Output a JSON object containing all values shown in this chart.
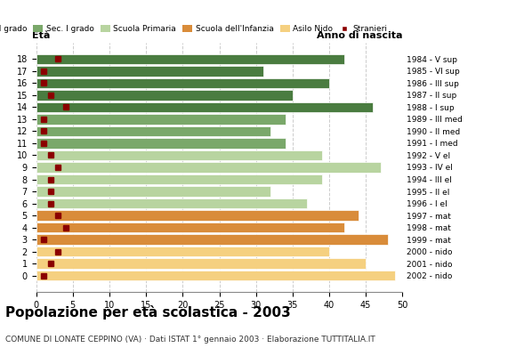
{
  "ages": [
    18,
    17,
    16,
    15,
    14,
    13,
    12,
    11,
    10,
    9,
    8,
    7,
    6,
    5,
    4,
    3,
    2,
    1,
    0
  ],
  "years": [
    "1984 - V sup",
    "1985 - VI sup",
    "1986 - III sup",
    "1987 - II sup",
    "1988 - I sup",
    "1989 - III med",
    "1990 - II med",
    "1991 - I med",
    "1992 - V el",
    "1993 - IV el",
    "1994 - III el",
    "1995 - II el",
    "1996 - I el",
    "1997 - mat",
    "1998 - mat",
    "1999 - mat",
    "2000 - nido",
    "2001 - nido",
    "2002 - nido"
  ],
  "bar_values": [
    42,
    31,
    40,
    35,
    46,
    34,
    32,
    34,
    39,
    47,
    39,
    32,
    37,
    44,
    42,
    48,
    40,
    45,
    49
  ],
  "stranieri": [
    3,
    1,
    1,
    2,
    4,
    1,
    1,
    1,
    2,
    3,
    2,
    2,
    2,
    3,
    4,
    1,
    3,
    2,
    1
  ],
  "categories": {
    "Sec. II grado": {
      "ages": [
        14,
        15,
        16,
        17,
        18
      ],
      "color": "#4a7c40"
    },
    "Sec. I grado": {
      "ages": [
        11,
        12,
        13
      ],
      "color": "#7aa86a"
    },
    "Scuola Primaria": {
      "ages": [
        6,
        7,
        8,
        9,
        10
      ],
      "color": "#b8d4a0"
    },
    "Scuola dell'Infanzia": {
      "ages": [
        3,
        4,
        5
      ],
      "color": "#d98c3a"
    },
    "Asilo Nido": {
      "ages": [
        0,
        1,
        2
      ],
      "color": "#f5d080"
    }
  },
  "stranieri_color": "#8b0000",
  "title": "Popolazione per età scolastica - 2003",
  "subtitle": "COMUNE DI LONATE CEPPINO (VA) · Dati ISTAT 1° gennaio 2003 · Elaborazione TUTTITALIA.IT",
  "xlabel_left": "Età",
  "xlabel_right": "Anno di nascita",
  "xlim": [
    0,
    50
  ],
  "xticks": [
    0,
    5,
    10,
    15,
    20,
    25,
    30,
    35,
    40,
    45,
    50
  ],
  "bar_height": 0.85,
  "background_color": "#ffffff",
  "grid_color": "#cccccc",
  "legend_items": [
    {
      "label": "Sec. II grado",
      "color": "#4a7c40"
    },
    {
      "label": "Sec. I grado",
      "color": "#7aa86a"
    },
    {
      "label": "Scuola Primaria",
      "color": "#b8d4a0"
    },
    {
      "label": "Scuola dell'Infanzia",
      "color": "#d98c3a"
    },
    {
      "label": "Asilo Nido",
      "color": "#f5d080"
    },
    {
      "label": "Stranieri",
      "color": "#8b0000"
    }
  ]
}
